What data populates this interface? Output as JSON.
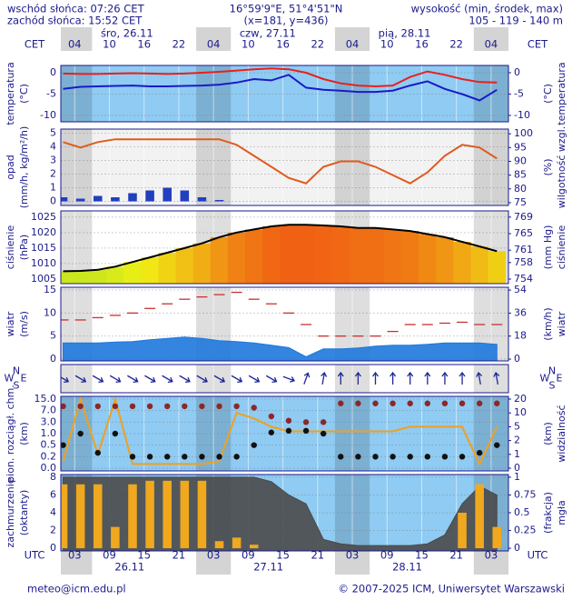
{
  "header": {
    "sunrise": "wschód słońca: 07:26 CET",
    "sunset": "zachód słońca: 15:52 CET",
    "coords": "16°59'9\"E, 51°4'51\"N",
    "grid": "(x=181, y=436)",
    "height_title": "wysokość (min, środek, max)",
    "height_values": "105 - 119 - 140 m"
  },
  "time_axis": {
    "xlim": [
      0.6,
      78
    ],
    "x": [
      1,
      4,
      7,
      10,
      13,
      16,
      19,
      22,
      25,
      28,
      31,
      34,
      37,
      40,
      43,
      46,
      49,
      52,
      55,
      58,
      61,
      64,
      67,
      70,
      73,
      76
    ],
    "top_zone": "CET",
    "bottom_zone": "UTC",
    "cet_ticks": [
      {
        "value": 3,
        "label": "04"
      },
      {
        "value": 9,
        "label": "10"
      },
      {
        "value": 15,
        "label": "16"
      },
      {
        "value": 21,
        "label": "22"
      },
      {
        "value": 27,
        "label": "04"
      },
      {
        "value": 33,
        "label": "10"
      },
      {
        "value": 39,
        "label": "16"
      },
      {
        "value": 45,
        "label": "22"
      },
      {
        "value": 51,
        "label": "04"
      },
      {
        "value": 57,
        "label": "10"
      },
      {
        "value": 63,
        "label": "16"
      },
      {
        "value": 69,
        "label": "22"
      },
      {
        "value": 75,
        "label": "04"
      }
    ],
    "utc_ticks": [
      {
        "value": 3,
        "label": "03"
      },
      {
        "value": 9,
        "label": "09"
      },
      {
        "value": 15,
        "label": "15"
      },
      {
        "value": 21,
        "label": "21"
      },
      {
        "value": 27,
        "label": "03"
      },
      {
        "value": 33,
        "label": "09"
      },
      {
        "value": 39,
        "label": "15"
      },
      {
        "value": 45,
        "label": "21"
      },
      {
        "value": 51,
        "label": "03"
      },
      {
        "value": 57,
        "label": "09"
      },
      {
        "value": 63,
        "label": "15"
      },
      {
        "value": 69,
        "label": "21"
      },
      {
        "value": 75,
        "label": "03"
      }
    ],
    "top_dates": [
      "śro, 26.11",
      "czw, 27.11",
      "pią, 28.11"
    ],
    "bottom_dates": [
      "26.11",
      "27.11",
      "28.11"
    ]
  },
  "chart_data": [
    {
      "type": "combo",
      "ylabel": [
        "temperatura",
        "(°C)"
      ],
      "y2label": [
        "(°C)",
        "temperatura"
      ],
      "background": "#8fcbf2",
      "grid": true,
      "ylim": [
        -11.5,
        1.7
      ],
      "yticks": [
        -10,
        -5,
        0
      ],
      "y2lim": [
        -11.5,
        1.7
      ],
      "y2ticks": [
        -10,
        -5,
        0
      ],
      "series": [
        {
          "type": "line",
          "color": "#e8201c",
          "values": [
            -0.2,
            -0.3,
            -0.3,
            -0.2,
            -0.1,
            -0.2,
            -0.3,
            -0.2,
            0.0,
            0.2,
            0.5,
            0.8,
            1.0,
            0.8,
            0.0,
            -1.5,
            -2.5,
            -3.0,
            -3.2,
            -3.0,
            -1.0,
            0.3,
            -0.5,
            -1.5,
            -2.2,
            -2.3
          ]
        },
        {
          "type": "line",
          "color": "#1a1ac8",
          "values": [
            -3.8,
            -3.3,
            -3.2,
            -3.1,
            -3.0,
            -3.2,
            -3.2,
            -3.1,
            -3.0,
            -2.8,
            -2.3,
            -1.5,
            -1.8,
            -0.5,
            -3.5,
            -4.0,
            -4.2,
            -4.5,
            -4.5,
            -4.2,
            -3.0,
            -2.0,
            -3.8,
            -5.0,
            -6.5,
            -4.0
          ]
        }
      ]
    },
    {
      "type": "combo",
      "ylabel": [
        "opad",
        "(mm/h, kg/m²/h)"
      ],
      "y2label": [
        "(%)",
        "wilgotność wzgl."
      ],
      "background": "#f2f2f2",
      "grid": true,
      "ylim": [
        -0.3,
        5.3
      ],
      "yticks": [
        0,
        1,
        2,
        3,
        4,
        5
      ],
      "y2lim": [
        74,
        101.7
      ],
      "y2ticks": [
        75,
        80,
        85,
        90,
        95,
        100
      ],
      "series": [
        {
          "type": "bar",
          "color": "#2040c0",
          "values": [
            0.3,
            0.2,
            0.4,
            0.3,
            0.6,
            0.8,
            1.0,
            0.8,
            0.3,
            0.1,
            0,
            0,
            0,
            0,
            0,
            0,
            0,
            0,
            0,
            0,
            0,
            0,
            0,
            0,
            0,
            0
          ]
        },
        {
          "type": "line",
          "axis": "y2",
          "color": "#e05a1e",
          "values": [
            97,
            95,
            97,
            98,
            98,
            98,
            98,
            98,
            98,
            98,
            96,
            92,
            88,
            84,
            82,
            88,
            90,
            90,
            88,
            85,
            82,
            86,
            92,
            96,
            95,
            91
          ]
        }
      ]
    },
    {
      "type": "combo",
      "ylabel": [
        "ciśnienie",
        "(hPa)"
      ],
      "y2label": [
        "(mm Hg)",
        "ciśnienie"
      ],
      "background": "#ffffff",
      "grid": true,
      "ylim": [
        1003.5,
        1027
      ],
      "yticks": [
        1005,
        1010,
        1015,
        1020,
        1025
      ],
      "y2lim": [
        752.9,
        770.5
      ],
      "y2ticks": [
        754,
        758,
        761,
        765,
        769
      ],
      "series": [
        {
          "type": "bar",
          "color": "#000000",
          "colormap": [
            "#78dc28",
            "#c8e61e",
            "#f0f014",
            "#f0be14",
            "#f08c14",
            "#f05a14",
            "#e03c14"
          ],
          "values": [
            1007.5,
            1007.6,
            1008,
            1009,
            1010.5,
            1012,
            1013.5,
            1015,
            1016.5,
            1018.5,
            1020,
            1021,
            1022,
            1022.5,
            1022.5,
            1022.3,
            1022,
            1021.5,
            1021.5,
            1021,
            1020.5,
            1019.5,
            1018.5,
            1017,
            1015.5,
            1014
          ]
        }
      ]
    },
    {
      "type": "combo",
      "ylabel": [
        "wiatr",
        "(m/s)"
      ],
      "y2label": [
        "(km/h)",
        "wiatr"
      ],
      "background": "#ffffff",
      "grid": true,
      "ylim": [
        -0.4,
        15.6
      ],
      "yticks": [
        0,
        5,
        10,
        15
      ],
      "y2lim": [
        -1.4,
        56.2
      ],
      "y2ticks": [
        0,
        18,
        36,
        54
      ],
      "series": [
        {
          "type": "area",
          "color": "#1e78dc",
          "values": [
            3.5,
            3.5,
            3.5,
            3.7,
            3.8,
            4.2,
            4.5,
            4.8,
            4.5,
            4.0,
            3.8,
            3.5,
            3.0,
            2.5,
            0.5,
            2.2,
            2.2,
            2.4,
            2.8,
            3.0,
            3.0,
            3.2,
            3.5,
            3.5,
            3.5,
            3.2
          ]
        },
        {
          "type": "dash",
          "color": "#c83232",
          "values": [
            8.5,
            8.5,
            9,
            9.5,
            10,
            11,
            12,
            13,
            13.5,
            14,
            14.5,
            13,
            12,
            10,
            7.5,
            5,
            5,
            5,
            5,
            6,
            7.5,
            7.5,
            7.8,
            8,
            7.5,
            7.5
          ]
        }
      ]
    },
    {
      "type": "combo",
      "compass": {
        "n": "N",
        "w": "W",
        "e": "E",
        "s": "S"
      },
      "background": "#ffffff",
      "series": [
        {
          "type": "arrows",
          "color": "#1e2896",
          "values": [
            300,
            300,
            300,
            300,
            300,
            300,
            300,
            300,
            300,
            300,
            300,
            300,
            300,
            290,
            200,
            190,
            180,
            180,
            180,
            180,
            180,
            180,
            180,
            180,
            170,
            170
          ]
        }
      ]
    },
    {
      "type": "combo",
      "ylabel": [
        "pion. rozciągł. chm.",
        "(km)"
      ],
      "y2label": [
        "(km)",
        "widzialność"
      ],
      "background": "#8fcbf2",
      "grid": true,
      "yscale": "piecewise",
      "ylim": [
        0,
        15
      ],
      "yticks": [
        {
          "value": 0,
          "label": "0.0"
        },
        {
          "value": 0.2,
          "label": "0.2"
        },
        {
          "value": 0.5,
          "label": "0.5"
        },
        {
          "value": 1,
          "label": "1.0"
        },
        {
          "value": 3,
          "label": "3.0"
        },
        {
          "value": 7,
          "label": "7.0"
        },
        {
          "value": 15,
          "label": "15.0"
        }
      ],
      "y2lim": [
        0,
        20
      ],
      "y2ticks": [
        0,
        1,
        2,
        5,
        10,
        20
      ],
      "series": [
        {
          "type": "line",
          "axis": "y2",
          "color": "#f0a01e",
          "values": [
            0.5,
            20,
            1,
            20,
            0.3,
            0.3,
            0.3,
            0.3,
            0.3,
            0.5,
            10,
            8,
            5,
            4,
            4,
            4,
            4,
            4,
            4,
            4,
            5,
            5,
            5,
            5,
            0.3,
            5
          ]
        },
        {
          "type": "scatter",
          "color": "#8c2828",
          "values": [
            10,
            10,
            10,
            10,
            10,
            10,
            10,
            10,
            10,
            10,
            10,
            9,
            5,
            3.5,
            3,
            3,
            12,
            12,
            12,
            12,
            12,
            12,
            12,
            12,
            12,
            12
          ]
        },
        {
          "type": "scatter",
          "color": "#111111",
          "values": [
            0.5,
            1,
            0.3,
            1,
            0.2,
            0.2,
            0.2,
            0.2,
            0.2,
            0.2,
            0.2,
            0.5,
            1.2,
            1.5,
            1.5,
            1,
            0.2,
            0.2,
            0.2,
            0.2,
            0.2,
            0.2,
            0.2,
            0.2,
            0.3,
            0.5
          ]
        }
      ]
    },
    {
      "type": "combo",
      "ylabel": [
        "zachmurzenie",
        "(oktanty)"
      ],
      "y2label": [
        "(frakcja)",
        "mgła"
      ],
      "background": "#8fcbf2",
      "grid": true,
      "ylim": [
        -0.3,
        8.3
      ],
      "yticks": [
        0,
        2,
        4,
        6,
        8
      ],
      "y2lim": [
        -0.0375,
        1.0375
      ],
      "y2ticks": [
        0,
        0.25,
        0.5,
        0.75,
        1
      ],
      "series": [
        {
          "type": "area",
          "color": "#4a4a4a",
          "values": [
            8,
            8,
            8,
            8,
            8,
            8,
            8,
            8,
            8,
            8,
            8,
            8,
            7.5,
            6,
            5,
            1,
            0.5,
            0.3,
            0.3,
            0.3,
            0.3,
            0.5,
            1.5,
            5,
            7,
            6
          ]
        },
        {
          "type": "bar",
          "axis": "y2",
          "color": "#f0a81e",
          "values": [
            0.9,
            0.9,
            0.9,
            0.3,
            0.9,
            0.95,
            0.95,
            0.95,
            0.95,
            0.1,
            0.15,
            0.05,
            0,
            0,
            0,
            0,
            0,
            0,
            0,
            0,
            0,
            0,
            0,
            0.5,
            0.9,
            0.3
          ]
        }
      ]
    }
  ],
  "footer": {
    "email": "meteo@icm.edu.pl",
    "copyright": "© 2007-2025 ICM, Uniwersytet Warszawski"
  }
}
